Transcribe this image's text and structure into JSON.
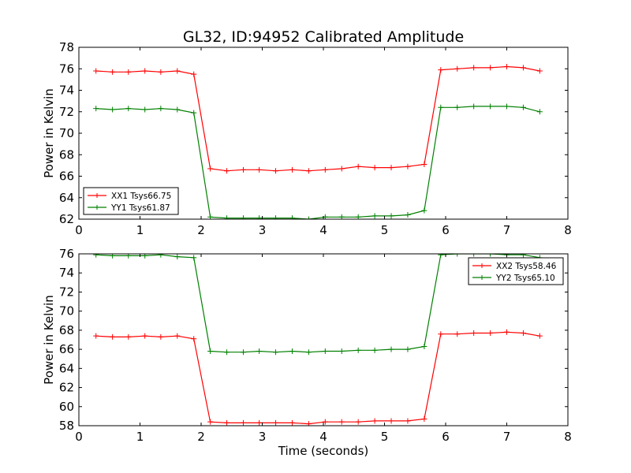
{
  "chart_data": [
    {
      "type": "line",
      "title": "GL32, ID:94952 Calibrated Amplitude",
      "xlabel": "",
      "ylabel": "Power in Kelvin",
      "xlim": [
        0,
        8
      ],
      "ylim": [
        62,
        78
      ],
      "xticks": [
        "0",
        "1",
        "2",
        "3",
        "4",
        "5",
        "6",
        "7",
        "8"
      ],
      "yticks": [
        "62",
        "64",
        "66",
        "68",
        "70",
        "72",
        "74",
        "76",
        "78"
      ],
      "grid": false,
      "legend_position": "lower-left",
      "x": [
        0.28,
        0.55,
        0.81,
        1.08,
        1.34,
        1.61,
        1.88,
        2.15,
        2.42,
        2.69,
        2.95,
        3.22,
        3.49,
        3.76,
        4.03,
        4.3,
        4.57,
        4.84,
        5.11,
        5.38,
        5.65,
        5.92,
        6.19,
        6.46,
        6.73,
        7.0,
        7.27,
        7.54
      ],
      "series": [
        {
          "name": "XX1 Tsys66.75",
          "color": "#ff0000",
          "values": [
            75.8,
            75.7,
            75.7,
            75.8,
            75.7,
            75.8,
            75.5,
            66.7,
            66.5,
            66.6,
            66.6,
            66.5,
            66.6,
            66.5,
            66.6,
            66.7,
            66.9,
            66.8,
            66.8,
            66.9,
            67.1,
            75.9,
            76.0,
            76.1,
            76.1,
            76.2,
            76.1,
            75.8
          ]
        },
        {
          "name": "YY1 Tsys61.87",
          "color": "#008000",
          "values": [
            72.3,
            72.2,
            72.3,
            72.2,
            72.3,
            72.2,
            71.9,
            62.2,
            62.1,
            62.1,
            62.1,
            62.1,
            62.1,
            62.0,
            62.2,
            62.2,
            62.2,
            62.3,
            62.3,
            62.4,
            62.8,
            72.4,
            72.4,
            72.5,
            72.5,
            72.5,
            72.4,
            72.0
          ]
        }
      ]
    },
    {
      "type": "line",
      "title": "",
      "xlabel": "Time (seconds)",
      "ylabel": "Power in Kelvin",
      "xlim": [
        0,
        8
      ],
      "ylim": [
        58,
        76
      ],
      "xticks": [
        "0",
        "1",
        "2",
        "3",
        "4",
        "5",
        "6",
        "7",
        "8"
      ],
      "yticks": [
        "58",
        "60",
        "62",
        "64",
        "66",
        "68",
        "70",
        "72",
        "74",
        "76"
      ],
      "grid": false,
      "legend_position": "upper-right",
      "x": [
        0.28,
        0.55,
        0.81,
        1.08,
        1.34,
        1.61,
        1.88,
        2.15,
        2.42,
        2.69,
        2.95,
        3.22,
        3.49,
        3.76,
        4.03,
        4.3,
        4.57,
        4.84,
        5.11,
        5.38,
        5.65,
        5.92,
        6.19,
        6.46,
        6.73,
        7.0,
        7.27,
        7.54
      ],
      "series": [
        {
          "name": "XX2 Tsys58.46",
          "color": "#ff0000",
          "values": [
            67.4,
            67.3,
            67.3,
            67.4,
            67.3,
            67.4,
            67.1,
            58.4,
            58.3,
            58.3,
            58.3,
            58.3,
            58.3,
            58.2,
            58.4,
            58.4,
            58.4,
            58.5,
            58.5,
            58.5,
            58.7,
            67.6,
            67.6,
            67.7,
            67.7,
            67.8,
            67.7,
            67.4
          ]
        },
        {
          "name": "YY2 Tsys65.10",
          "color": "#008000",
          "values": [
            75.9,
            75.8,
            75.8,
            75.8,
            75.9,
            75.7,
            75.6,
            65.8,
            65.7,
            65.7,
            65.8,
            65.7,
            65.8,
            65.7,
            65.8,
            65.8,
            65.9,
            65.9,
            66.0,
            66.0,
            66.3,
            75.9,
            76.0,
            76.0,
            76.0,
            75.9,
            75.9,
            75.6
          ]
        }
      ]
    }
  ]
}
